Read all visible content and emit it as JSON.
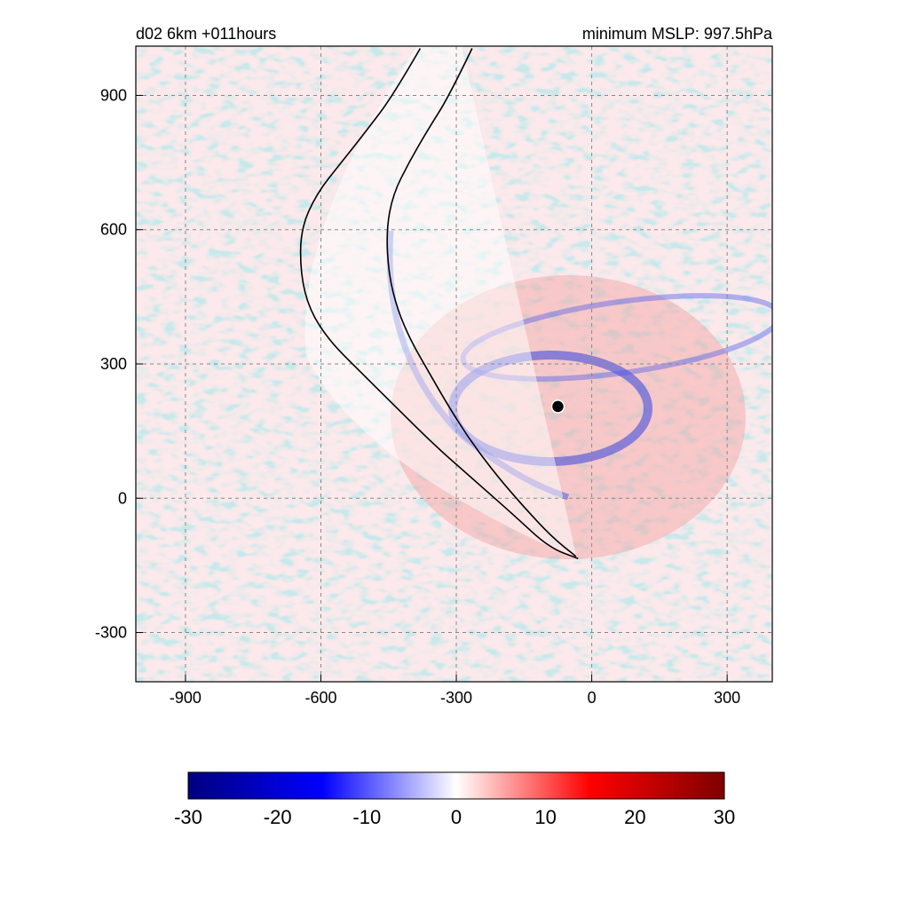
{
  "chart_data": {
    "type": "heatmap",
    "title_left": "d02 6km    +011hours",
    "title_right": "minimum  MSLP: 997.5hPa",
    "xlabel": "",
    "ylabel": "",
    "xlim": [
      -1010,
      400
    ],
    "ylim": [
      -410,
      1010
    ],
    "xticks": [
      -900,
      -600,
      -300,
      0,
      300
    ],
    "yticks": [
      -300,
      0,
      300,
      600,
      900
    ],
    "grid": true,
    "grid_style": "dashed",
    "colormap": [
      "#00007f",
      "#0000ff",
      "#ffffff",
      "#ff0000",
      "#7f0000"
    ],
    "colorbar": {
      "range": [
        -30,
        30
      ],
      "ticks": [
        -30,
        -20,
        -10,
        0,
        10,
        20,
        30
      ],
      "placement": "bottom"
    },
    "center_marker": {
      "x": -75,
      "y": 205,
      "color": "#000000"
    },
    "contours": [
      {
        "name": "",
        "points": [
          [
            -380,
            1005
          ],
          [
            -440,
            900
          ],
          [
            -500,
            820
          ],
          [
            -555,
            750
          ],
          [
            -610,
            680
          ],
          [
            -645,
            600
          ],
          [
            -645,
            500
          ],
          [
            -625,
            420
          ],
          [
            -580,
            350
          ],
          [
            -510,
            280
          ],
          [
            -430,
            200
          ],
          [
            -350,
            120
          ],
          [
            -260,
            40
          ],
          [
            -170,
            -40
          ],
          [
            -95,
            -110
          ],
          [
            -30,
            -135
          ]
        ]
      },
      {
        "name": "",
        "points": [
          [
            -265,
            1005
          ],
          [
            -315,
            900
          ],
          [
            -365,
            820
          ],
          [
            -405,
            750
          ],
          [
            -440,
            680
          ],
          [
            -455,
            600
          ],
          [
            -450,
            500
          ],
          [
            -430,
            420
          ],
          [
            -400,
            350
          ],
          [
            -360,
            280
          ],
          [
            -320,
            210
          ],
          [
            -270,
            130
          ],
          [
            -210,
            50
          ],
          [
            -150,
            -20
          ],
          [
            -90,
            -85
          ],
          [
            -35,
            -130
          ]
        ]
      }
    ]
  }
}
